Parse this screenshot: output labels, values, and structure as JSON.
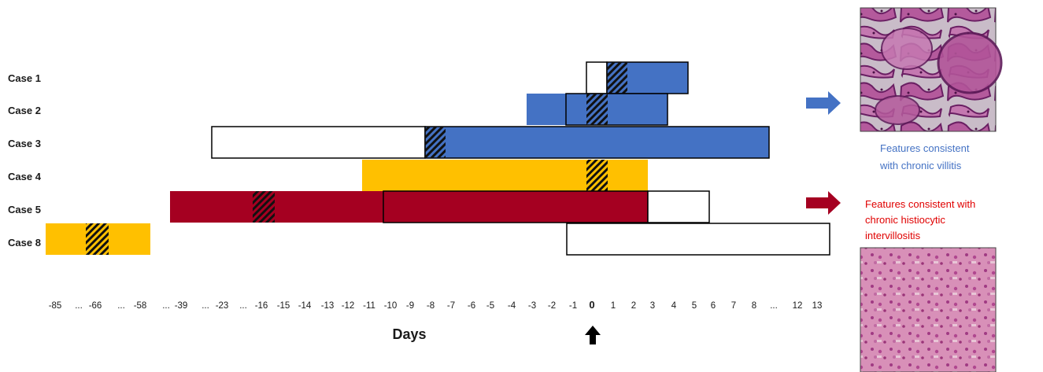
{
  "cases": [
    {
      "label": "Case 1"
    },
    {
      "label": "Case 2"
    },
    {
      "label": "Case 3"
    },
    {
      "label": "Case 4"
    },
    {
      "label": "Case 5"
    },
    {
      "label": "Case 8"
    }
  ],
  "axis": {
    "title": "Days",
    "ticks": [
      "-85",
      "...",
      "-66",
      "...",
      "-58",
      "...",
      "-39",
      "...",
      "-23",
      "...",
      "-16",
      "-15",
      "-14",
      "-13",
      "-12",
      "-11",
      "-10",
      "-9",
      "-8",
      "-7",
      "-6",
      "-5",
      "-4",
      "-3",
      "-2",
      "-1",
      "0",
      "1",
      "2",
      "3",
      "4",
      "5",
      "6",
      "7",
      "8",
      "...",
      "12",
      "13"
    ],
    "zero_label": "0"
  },
  "legend": {
    "villitis_caption_line1": "Features consistent",
    "villitis_caption_line2": "with chronic villitis",
    "chi_caption_line1": "Features consistent with",
    "chi_caption_line2": "chronic histiocytic",
    "chi_caption_line3": "intervillositis",
    "villitis_color": "#4472c4",
    "chi_color": "#a50021"
  },
  "colors": {
    "blue": "#4472c4",
    "gold": "#ffc000",
    "crimson": "#a50021",
    "outline": "#000000"
  }
}
